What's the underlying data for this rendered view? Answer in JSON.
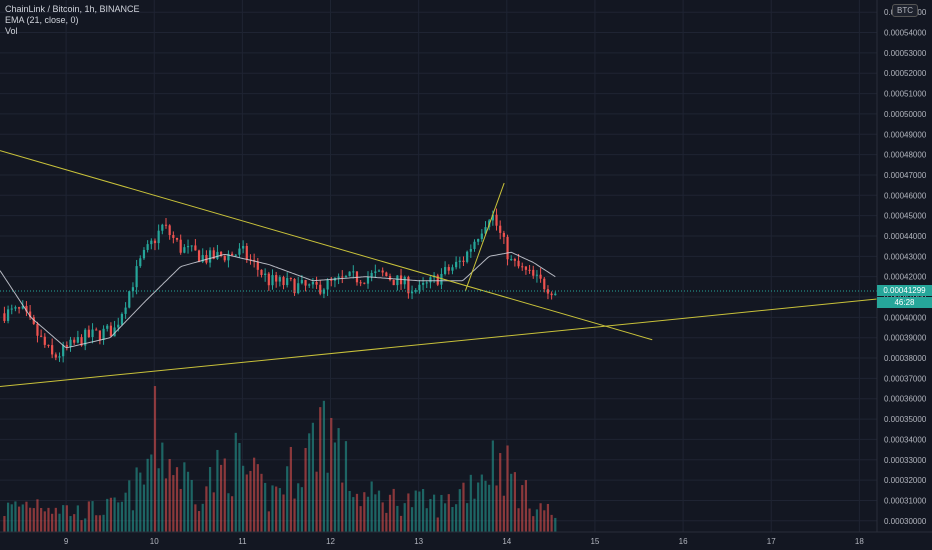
{
  "legend": {
    "symbol_line": "ChainLink / Bitcoin, 1h, BINANCE",
    "ema_line": "EMA (21, close, 0)",
    "vol_line": "Vol"
  },
  "currency_badge": "BTC",
  "last_price_label": "0.00041299",
  "countdown_label": "46:28",
  "colors": {
    "background": "#131722",
    "up": "#26a69a",
    "down": "#ef5350",
    "ema": "#d1d4dc",
    "trendline": "#c9c23a",
    "grid": "#1f2433"
  },
  "chart_data": {
    "type": "candlestick",
    "title": "ChainLink / Bitcoin, 1h, BINANCE",
    "indicators": [
      "EMA (21, close, 0)",
      "Vol"
    ],
    "x_tick_labels": [
      "9",
      "10",
      "11",
      "12",
      "13",
      "14",
      "15",
      "16",
      "17",
      "18"
    ],
    "x_tick_days": [
      9,
      10,
      11,
      12,
      13,
      14,
      15,
      16,
      17,
      18
    ],
    "x_range_days": [
      8.25,
      18.2
    ],
    "y_tick_labels": [
      "0.00030000",
      "0.00031000",
      "0.00032000",
      "0.00033000",
      "0.00034000",
      "0.00035000",
      "0.00036000",
      "0.00037000",
      "0.00038000",
      "0.00039000",
      "0.00040000",
      "0.00041000",
      "0.00042000",
      "0.00043000",
      "0.00044000",
      "0.00045000",
      "0.00046000",
      "0.00047000",
      "0.00048000",
      "0.00049000",
      "0.00050000",
      "0.00051000",
      "0.00052000",
      "0.00053000",
      "0.00054000",
      "0.00055000"
    ],
    "y_range": [
      0.0002945,
      0.000556
    ],
    "last_price": 0.00041299,
    "price_keypoints": [
      [
        8.3,
        0.000398,
        0.000402
      ],
      [
        8.5,
        0.00039,
        0.000403
      ],
      [
        8.85,
        0.000375,
        0.00038
      ],
      [
        9.2,
        0.000388,
        0.00039
      ],
      [
        9.55,
        0.000392,
        0.000394
      ],
      [
        9.85,
        0.000422,
        0.000428
      ],
      [
        10.1,
        0.00045,
        0.000445
      ],
      [
        10.3,
        0.000438,
        0.000434
      ],
      [
        10.6,
        0.000431,
        0.000429
      ],
      [
        11.0,
        0.00043,
        0.000432
      ],
      [
        11.3,
        0.000421,
        0.000418
      ],
      [
        11.8,
        0.000416,
        0.000414
      ],
      [
        12.2,
        0.000418,
        0.000419
      ],
      [
        12.6,
        0.000425,
        0.000421
      ],
      [
        13.0,
        0.000414,
        0.000413
      ],
      [
        13.5,
        0.000422,
        0.000428
      ],
      [
        13.82,
        0.000458,
        0.000452
      ],
      [
        14.05,
        0.00043,
        0.000427
      ],
      [
        14.35,
        0.00042,
        0.000418
      ],
      [
        14.55,
        0.000413,
        0.000413
      ]
    ],
    "ema_keypoints": [
      [
        8.25,
        0.000423
      ],
      [
        8.6,
        0.0004
      ],
      [
        9.0,
        0.000385
      ],
      [
        9.5,
        0.00039
      ],
      [
        9.9,
        0.000408
      ],
      [
        10.3,
        0.000425
      ],
      [
        10.8,
        0.000431
      ],
      [
        11.3,
        0.000426
      ],
      [
        11.8,
        0.000418
      ],
      [
        12.4,
        0.00042
      ],
      [
        13.0,
        0.000418
      ],
      [
        13.5,
        0.000418
      ],
      [
        13.8,
        0.00043
      ],
      [
        14.05,
        0.000432
      ],
      [
        14.3,
        0.000427
      ],
      [
        14.55,
        0.00042
      ]
    ],
    "volume_keypoints": [
      [
        8.3,
        25
      ],
      [
        8.7,
        35
      ],
      [
        9.1,
        22
      ],
      [
        9.6,
        28
      ],
      [
        9.9,
        60
      ],
      [
        10.0,
        110
      ],
      [
        10.2,
        75
      ],
      [
        10.5,
        45
      ],
      [
        10.9,
        80
      ],
      [
        11.3,
        38
      ],
      [
        11.8,
        95
      ],
      [
        11.9,
        135
      ],
      [
        12.3,
        40
      ],
      [
        12.8,
        35
      ],
      [
        13.3,
        30
      ],
      [
        13.7,
        65
      ],
      [
        13.9,
        85
      ],
      [
        14.2,
        40
      ],
      [
        14.55,
        18
      ]
    ],
    "trendlines": [
      {
        "name": "descending resistance",
        "points": [
          [
            8.25,
            0.000482
          ],
          [
            15.65,
            0.000389
          ]
        ]
      },
      {
        "name": "ascending support",
        "points": [
          [
            8.25,
            0.000366
          ],
          [
            18.2,
            0.000409
          ]
        ]
      },
      {
        "name": "breakout line",
        "points": [
          [
            13.53,
            0.000413
          ],
          [
            13.97,
            0.000466
          ]
        ]
      }
    ]
  }
}
